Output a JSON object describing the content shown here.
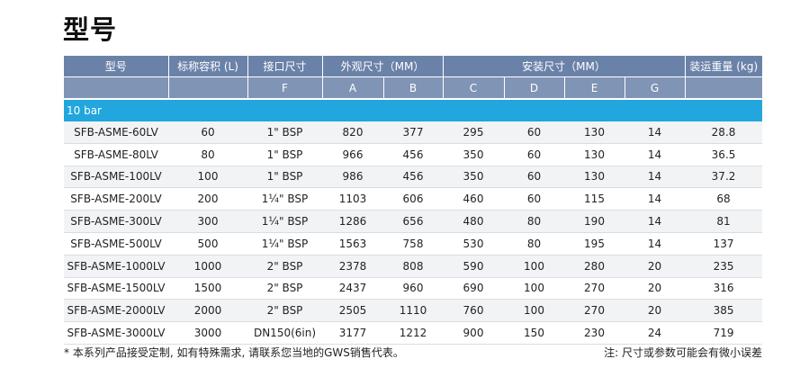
{
  "title": "型号",
  "headers": {
    "model": "型号",
    "capacity": "标称容积 (L)",
    "connection": "接口尺寸",
    "outer_dims": "外观尺寸（MM）",
    "install_dims": "安装尺寸（MM）",
    "weight": "装运重量 (kg)",
    "sub": [
      "",
      "",
      "F",
      "A",
      "B",
      "C",
      "D",
      "E",
      "G",
      ""
    ]
  },
  "group_label": "10 bar",
  "rows": [
    [
      "SFB-ASME-60LV",
      "60",
      "1\" BSP",
      "820",
      "377",
      "295",
      "60",
      "130",
      "14",
      "28.8"
    ],
    [
      "SFB-ASME-80LV",
      "80",
      "1\" BSP",
      "966",
      "456",
      "350",
      "60",
      "130",
      "14",
      "36.5"
    ],
    [
      "SFB-ASME-100LV",
      "100",
      "1\" BSP",
      "986",
      "456",
      "350",
      "60",
      "130",
      "14",
      "37.2"
    ],
    [
      "SFB-ASME-200LV",
      "200",
      "1¼\" BSP",
      "1103",
      "606",
      "460",
      "60",
      "115",
      "14",
      "68"
    ],
    [
      "SFB-ASME-300LV",
      "300",
      "1¼\" BSP",
      "1286",
      "656",
      "480",
      "80",
      "190",
      "14",
      "81"
    ],
    [
      "SFB-ASME-500LV",
      "500",
      "1¼\" BSP",
      "1563",
      "758",
      "530",
      "80",
      "195",
      "14",
      "137"
    ],
    [
      "SFB-ASME-1000LV",
      "1000",
      "2\" BSP",
      "2378",
      "808",
      "590",
      "100",
      "280",
      "20",
      "235"
    ],
    [
      "SFB-ASME-1500LV",
      "1500",
      "2\" BSP",
      "2437",
      "960",
      "690",
      "100",
      "270",
      "20",
      "316"
    ],
    [
      "SFB-ASME-2000LV",
      "2000",
      "2\" BSP",
      "2505",
      "1110",
      "760",
      "100",
      "270",
      "20",
      "385"
    ],
    [
      "SFB-ASME-3000LV",
      "3000",
      "DN150(6in)",
      "3177",
      "1212",
      "900",
      "150",
      "230",
      "24",
      "719"
    ]
  ],
  "footnote": "* 本系列产品接受定制, 如有特殊需求, 请联系您当地的GWS销售代表。",
  "note": "注: 尺寸或参数可能会有微小误差"
}
